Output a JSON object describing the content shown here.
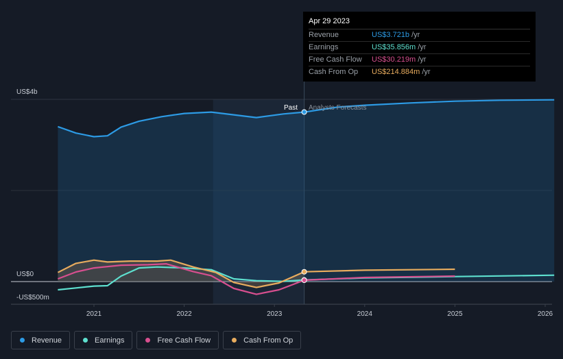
{
  "tooltip": {
    "date": "Apr 29 2023",
    "rows": [
      {
        "label": "Revenue",
        "value": "US$3.721b",
        "unit": "/yr",
        "color": "#2d9be5"
      },
      {
        "label": "Earnings",
        "value": "US$35.856m",
        "unit": "/yr",
        "color": "#5ee0cf"
      },
      {
        "label": "Free Cash Flow",
        "value": "US$30.219m",
        "unit": "/yr",
        "color": "#d84f8f"
      },
      {
        "label": "Cash From Op",
        "value": "US$214.884m",
        "unit": "/yr",
        "color": "#e8ac5e"
      }
    ]
  },
  "markers": {
    "past": "Past",
    "forecast": "Analysts Forecasts"
  },
  "legend": [
    {
      "label": "Revenue",
      "color": "#2d9be5"
    },
    {
      "label": "Earnings",
      "color": "#5ee0cf"
    },
    {
      "label": "Free Cash Flow",
      "color": "#d84f8f"
    },
    {
      "label": "Cash From Op",
      "color": "#e8ac5e"
    }
  ],
  "chart_data": {
    "type": "line",
    "y_unit": "US$ millions",
    "ylim": [
      -500,
      4000
    ],
    "y_tick_labels": [
      {
        "value": 4000,
        "label": "US$4b"
      },
      {
        "value": 0,
        "label": "US$0"
      },
      {
        "value": -500,
        "label": "-US$500m"
      }
    ],
    "x_ticks": [
      "2021",
      "2022",
      "2023",
      "2024",
      "2025",
      "2026"
    ],
    "xlim": [
      2020.35,
      2026.1
    ],
    "highlight_range": [
      2022.32,
      2023.33
    ],
    "past_end": 2023.33,
    "grid": true,
    "legend_position": "bottom",
    "series": [
      {
        "name": "Revenue",
        "color": "#2d9be5",
        "points": [
          [
            2020.6,
            3400
          ],
          [
            2020.8,
            3260
          ],
          [
            2021.0,
            3180
          ],
          [
            2021.15,
            3200
          ],
          [
            2021.3,
            3390
          ],
          [
            2021.5,
            3520
          ],
          [
            2021.75,
            3620
          ],
          [
            2022.0,
            3690
          ],
          [
            2022.3,
            3720
          ],
          [
            2022.55,
            3660
          ],
          [
            2022.8,
            3600
          ],
          [
            2023.1,
            3680
          ],
          [
            2023.33,
            3721
          ]
        ],
        "forecast": [
          [
            2023.33,
            3721
          ],
          [
            2023.7,
            3830
          ],
          [
            2024.0,
            3870
          ],
          [
            2024.5,
            3920
          ],
          [
            2025.0,
            3960
          ],
          [
            2025.5,
            3980
          ],
          [
            2026.1,
            3990
          ]
        ]
      },
      {
        "name": "Earnings",
        "color": "#5ee0cf",
        "points": [
          [
            2020.6,
            -180
          ],
          [
            2020.8,
            -140
          ],
          [
            2021.0,
            -100
          ],
          [
            2021.15,
            -90
          ],
          [
            2021.3,
            120
          ],
          [
            2021.5,
            300
          ],
          [
            2021.7,
            320
          ],
          [
            2022.0,
            300
          ],
          [
            2022.3,
            260
          ],
          [
            2022.55,
            60
          ],
          [
            2022.8,
            20
          ],
          [
            2023.1,
            5
          ],
          [
            2023.33,
            36
          ]
        ],
        "forecast": [
          [
            2023.33,
            36
          ],
          [
            2024.0,
            80
          ],
          [
            2025.0,
            110
          ],
          [
            2026.1,
            140
          ]
        ]
      },
      {
        "name": "Free Cash Flow",
        "color": "#d84f8f",
        "points": [
          [
            2020.6,
            60
          ],
          [
            2020.8,
            210
          ],
          [
            2021.0,
            300
          ],
          [
            2021.3,
            360
          ],
          [
            2021.6,
            370
          ],
          [
            2021.8,
            390
          ],
          [
            2022.1,
            220
          ],
          [
            2022.3,
            130
          ],
          [
            2022.55,
            -150
          ],
          [
            2022.8,
            -280
          ],
          [
            2023.05,
            -180
          ],
          [
            2023.33,
            30
          ]
        ],
        "forecast": [
          [
            2023.33,
            30
          ],
          [
            2024.0,
            90
          ],
          [
            2025.0,
            120
          ]
        ]
      },
      {
        "name": "Cash From Op",
        "color": "#e8ac5e",
        "points": [
          [
            2020.6,
            200
          ],
          [
            2020.8,
            400
          ],
          [
            2021.0,
            470
          ],
          [
            2021.15,
            430
          ],
          [
            2021.4,
            450
          ],
          [
            2021.7,
            450
          ],
          [
            2021.85,
            470
          ],
          [
            2022.1,
            320
          ],
          [
            2022.35,
            200
          ],
          [
            2022.55,
            -20
          ],
          [
            2022.8,
            -130
          ],
          [
            2023.05,
            -30
          ],
          [
            2023.33,
            215
          ]
        ],
        "forecast": [
          [
            2023.33,
            215
          ],
          [
            2024.0,
            250
          ],
          [
            2025.0,
            270
          ]
        ]
      }
    ]
  }
}
